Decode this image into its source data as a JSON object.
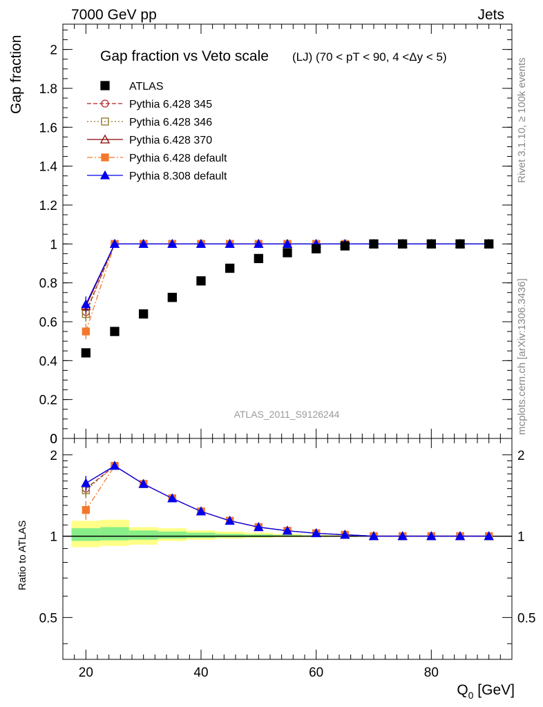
{
  "header": {
    "energy_label": "7000 GeV pp",
    "process_label": "Jets",
    "side_label_version": "Rivet 3.1.10, ≥ 100k events",
    "side_label_ref": "mcplots.cern.ch [arXiv:1306.3436]",
    "analysis_label": "ATLAS_2011_S9126244"
  },
  "chart_data": [
    {
      "type": "scatter",
      "panel": "main",
      "title": "Gap fraction vs Veto scale",
      "title_suffix": "(LJ) (70 < pT <  90, 4 <Δy < 5)",
      "xlabel": "",
      "ylabel": "Gap fraction",
      "xlim": [
        16,
        94
      ],
      "ylim": [
        0,
        2.13
      ],
      "yticks": [
        0,
        0.2,
        0.4,
        0.6,
        0.8,
        1,
        1.2,
        1.4,
        1.6,
        1.8,
        2
      ],
      "ytick_labels": [
        "0",
        "0.2",
        "0.4",
        "0.6",
        "0.8",
        "1",
        "1.2",
        "1.4",
        "1.6",
        "1.8",
        "2"
      ],
      "legend_position": "top-left",
      "x": [
        20,
        25,
        30,
        35,
        40,
        45,
        50,
        55,
        60,
        65,
        70,
        75,
        80,
        85,
        90
      ],
      "series": [
        {
          "name": "ATLAS",
          "color": "#000000",
          "marker": "square-filled",
          "line": "none",
          "values": [
            0.44,
            0.55,
            0.64,
            0.725,
            0.81,
            0.875,
            0.925,
            0.955,
            0.975,
            0.99,
            1.0,
            1.0,
            1.0,
            1.0,
            1.0
          ]
        },
        {
          "name": "Pythia 6.428 345",
          "color": "#b22222",
          "marker": "circle-open",
          "line": "dashed",
          "values": [
            0.65,
            1.0,
            1.0,
            1.0,
            1.0,
            1.0,
            1.0,
            1.0,
            1.0,
            1.0,
            1.0,
            1.0,
            1.0,
            1.0,
            1.0
          ],
          "err0": 0.04
        },
        {
          "name": "Pythia 6.428 346",
          "color": "#8b7322",
          "marker": "square-open",
          "line": "dotted",
          "values": [
            0.64,
            1.0,
            1.0,
            1.0,
            1.0,
            1.0,
            1.0,
            1.0,
            1.0,
            1.0,
            1.0,
            1.0,
            1.0,
            1.0,
            1.0
          ],
          "err0": 0.04
        },
        {
          "name": "Pythia 6.428 370",
          "color": "#8b0000",
          "marker": "triangle-open",
          "line": "solid",
          "values": [
            0.68,
            1.0,
            1.0,
            1.0,
            1.0,
            1.0,
            1.0,
            1.0,
            1.0,
            1.0,
            1.0,
            1.0,
            1.0,
            1.0,
            1.0
          ],
          "err0": 0.04
        },
        {
          "name": "Pythia 6.428 default",
          "color": "#f4782b",
          "marker": "square-filled",
          "line": "dashdot",
          "values": [
            0.55,
            1.0,
            1.0,
            1.0,
            1.0,
            1.0,
            1.0,
            1.0,
            1.0,
            1.0,
            1.0,
            1.0,
            1.0,
            1.0,
            1.0
          ],
          "err0": 0.04
        },
        {
          "name": "Pythia 8.308 default",
          "color": "#0000ee",
          "marker": "triangle-filled",
          "line": "solid",
          "values": [
            0.69,
            1.0,
            1.0,
            1.0,
            1.0,
            1.0,
            1.0,
            1.0,
            1.0,
            1.0,
            1.0,
            1.0,
            1.0,
            1.0,
            1.0
          ],
          "err0": 0.04
        }
      ]
    },
    {
      "type": "line",
      "panel": "ratio",
      "xlabel": "Q",
      "xlabel_sub": "0",
      "xlabel_unit": " [GeV]",
      "ylabel": "Ratio to ATLAS",
      "xlim": [
        16,
        94
      ],
      "ylim": [
        0.35,
        2.3
      ],
      "yscale": "log",
      "xticks": [
        20,
        40,
        60,
        80
      ],
      "xtick_labels": [
        "20",
        "40",
        "60",
        "80"
      ],
      "yticks": [
        0.5,
        1,
        2
      ],
      "ytick_labels": [
        "0.5",
        "1",
        "2"
      ],
      "reference": 1,
      "bands": {
        "yellow_color": "#ffff88",
        "green_color": "#88ee88",
        "edges": [
          17.5,
          22.5,
          27.5,
          32.5,
          37.5,
          42.5,
          47.5,
          52.5,
          57.5,
          62.5,
          67.5,
          72.5,
          77.5,
          82.5,
          87.5,
          92.5
        ],
        "yellow_lo": [
          0.91,
          0.92,
          0.93,
          0.96,
          0.97,
          0.98,
          0.985,
          0.99,
          0.993,
          0.995,
          0.997,
          0.998,
          0.999,
          0.999,
          0.999
        ],
        "yellow_hi": [
          1.14,
          1.15,
          1.08,
          1.07,
          1.05,
          1.04,
          1.03,
          1.02,
          1.01,
          1.008,
          1.005,
          1.003,
          1.002,
          1.001,
          1.001
        ],
        "green_lo": [
          0.96,
          0.965,
          0.97,
          0.98,
          0.985,
          0.99,
          0.992,
          0.995,
          0.997,
          0.998,
          0.999,
          0.999,
          0.9995,
          0.9995,
          0.9995
        ],
        "green_hi": [
          1.07,
          1.08,
          1.05,
          1.04,
          1.03,
          1.02,
          1.015,
          1.01,
          1.006,
          1.004,
          1.003,
          1.002,
          1.001,
          1.001,
          1.001
        ]
      },
      "x": [
        20,
        25,
        30,
        35,
        40,
        45,
        50,
        55,
        60,
        65,
        70,
        75,
        80,
        85,
        90
      ],
      "series": [
        {
          "name": "Pythia 6.428 345",
          "values": [
            1.5,
            1.82,
            1.56,
            1.38,
            1.235,
            1.14,
            1.08,
            1.047,
            1.025,
            1.012,
            1.0,
            1.0,
            1.0,
            1.0,
            1.0
          ],
          "err0": 0.1
        },
        {
          "name": "Pythia 6.428 346",
          "values": [
            1.48,
            1.82,
            1.56,
            1.38,
            1.235,
            1.14,
            1.08,
            1.047,
            1.025,
            1.012,
            1.0,
            1.0,
            1.0,
            1.0,
            1.0
          ],
          "err0": 0.1
        },
        {
          "name": "Pythia 6.428 370",
          "values": [
            1.57,
            1.82,
            1.56,
            1.38,
            1.235,
            1.14,
            1.08,
            1.047,
            1.025,
            1.012,
            1.0,
            1.0,
            1.0,
            1.0,
            1.0
          ],
          "err0": 0.1
        },
        {
          "name": "Pythia 6.428 default",
          "values": [
            1.25,
            1.82,
            1.56,
            1.38,
            1.235,
            1.14,
            1.08,
            1.047,
            1.025,
            1.012,
            1.0,
            1.0,
            1.0,
            1.0,
            1.0
          ],
          "err0": 0.1
        },
        {
          "name": "Pythia 8.308 default",
          "values": [
            1.57,
            1.82,
            1.56,
            1.38,
            1.235,
            1.14,
            1.08,
            1.047,
            1.025,
            1.012,
            1.0,
            1.0,
            1.0,
            1.0,
            1.0
          ],
          "err0": 0.1
        }
      ]
    }
  ]
}
